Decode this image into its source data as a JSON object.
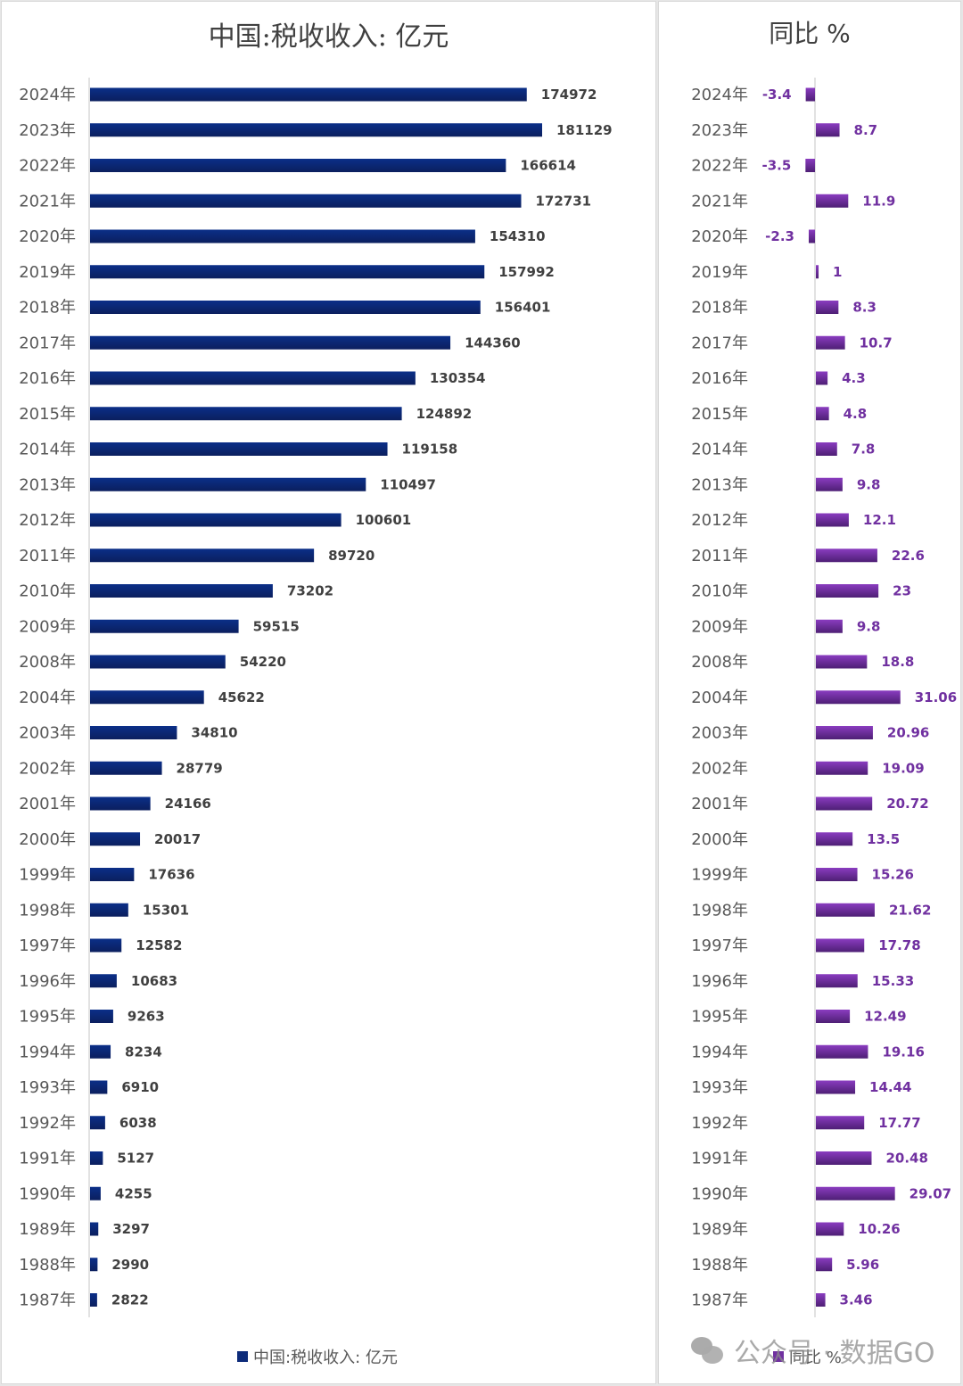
{
  "chart_data": [
    {
      "type": "bar",
      "orientation": "horizontal",
      "title": "中国:税收收入: 亿元",
      "xlabel": "",
      "ylabel": "",
      "legend": "bottom",
      "legend_label": "中国:税收收入: 亿元",
      "color": "#0d2b7a",
      "grid": false,
      "xlim": [
        0,
        181129
      ],
      "categories": [
        "2024年",
        "2023年",
        "2022年",
        "2021年",
        "2020年",
        "2019年",
        "2018年",
        "2017年",
        "2016年",
        "2015年",
        "2014年",
        "2013年",
        "2012年",
        "2011年",
        "2010年",
        "2009年",
        "2008年",
        "2004年",
        "2003年",
        "2002年",
        "2001年",
        "2000年",
        "1999年",
        "1998年",
        "1997年",
        "1996年",
        "1995年",
        "1994年",
        "1993年",
        "1992年",
        "1991年",
        "1990年",
        "1989年",
        "1988年",
        "1987年"
      ],
      "values": [
        174972,
        181129,
        166614,
        172731,
        154310,
        157992,
        156401,
        144360,
        130354,
        124892,
        119158,
        110497,
        100601,
        89720,
        73202,
        59515,
        54220,
        45622,
        34810,
        28779,
        24166,
        20017,
        17636,
        15301,
        12582,
        10683,
        9263,
        8234,
        6910,
        6038,
        5127,
        4255,
        3297,
        2990,
        2822
      ],
      "labels": [
        "174972",
        "181129",
        "166614",
        "172731",
        "154310",
        "157992",
        "156401",
        "144360",
        "130354",
        "124892",
        "119158",
        "110497",
        "100601",
        "89720",
        "73202",
        "59515",
        "54220",
        "45622",
        "34810",
        "28779",
        "24166",
        "20017",
        "17636",
        "15301",
        "12582",
        "10683",
        "9263",
        "8234",
        "6910",
        "6038",
        "5127",
        "4255",
        "3297",
        "2990",
        "2822"
      ]
    },
    {
      "type": "bar",
      "orientation": "horizontal",
      "title": "同比 %",
      "xlabel": "",
      "ylabel": "",
      "legend": "bottom",
      "legend_label": "同比 %",
      "color": "#7030a0",
      "grid": false,
      "xlim": [
        -3.5,
        31.06
      ],
      "categories": [
        "2024年",
        "2023年",
        "2022年",
        "2021年",
        "2020年",
        "2019年",
        "2018年",
        "2017年",
        "2016年",
        "2015年",
        "2014年",
        "2013年",
        "2012年",
        "2011年",
        "2010年",
        "2009年",
        "2008年",
        "2004年",
        "2003年",
        "2002年",
        "2001年",
        "2000年",
        "1999年",
        "1998年",
        "1997年",
        "1996年",
        "1995年",
        "1994年",
        "1993年",
        "1992年",
        "1991年",
        "1990年",
        "1989年",
        "1988年",
        "1987年"
      ],
      "values": [
        -3.4,
        8.7,
        -3.5,
        11.9,
        -2.3,
        1,
        8.3,
        10.7,
        4.3,
        4.8,
        7.8,
        9.8,
        12.1,
        22.6,
        23,
        9.8,
        18.8,
        31.06,
        20.96,
        19.09,
        20.72,
        13.5,
        15.26,
        21.62,
        17.78,
        15.33,
        12.49,
        19.16,
        14.44,
        17.77,
        20.48,
        29.07,
        10.26,
        5.96,
        3.46
      ],
      "labels": [
        "-3.4",
        "8.7",
        "-3.5",
        "11.9",
        "-2.3",
        "1",
        "8.3",
        "10.7",
        "4.3",
        "4.8",
        "7.8",
        "9.8",
        "12.1",
        "22.6",
        "23",
        "9.8",
        "18.8",
        "31.06",
        "20.96",
        "19.09",
        "20.72",
        "13.5",
        "15.26",
        "21.62",
        "17.78",
        "15.33",
        "12.49",
        "19.16",
        "14.44",
        "17.77",
        "20.48",
        "29.07",
        "10.26",
        "5.96",
        "3.46"
      ]
    }
  ],
  "watermark": {
    "text": "公众号 · 数据GO",
    "icon": "wechat-icon"
  }
}
